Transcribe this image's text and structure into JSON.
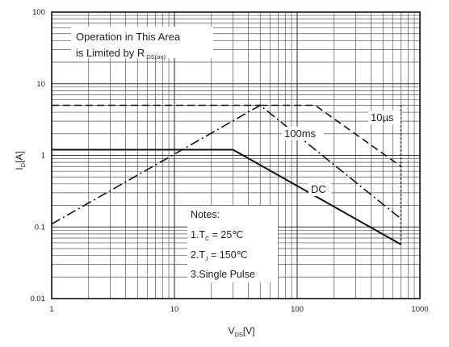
{
  "chart_data": {
    "type": "line",
    "title": "",
    "xlabel": "V",
    "xlabel_sub": "DS",
    "xlabel_unit": "[V]",
    "ylabel": "I",
    "ylabel_sub": "D",
    "ylabel_unit": "[A]",
    "x_scale": "log",
    "y_scale": "log",
    "xlim": [
      1,
      1000
    ],
    "ylim": [
      0.01,
      100
    ],
    "x_ticks": [
      "1",
      "10",
      "100",
      "1000"
    ],
    "y_ticks": [
      "100",
      "10",
      "1",
      "0.1",
      "0.01"
    ],
    "grid": true,
    "series": [
      {
        "name": "10µs",
        "style": "dash",
        "points": [
          [
            50,
            5
          ],
          [
            140,
            5
          ],
          [
            700,
            0.7
          ]
        ]
      },
      {
        "name": "100ms",
        "style": "dashdot",
        "points": [
          [
            1,
            0.11
          ],
          [
            50,
            5
          ],
          [
            700,
            0.13
          ]
        ]
      },
      {
        "name": "DC",
        "style": "solid",
        "points": [
          [
            1,
            1.2
          ],
          [
            30,
            1.2
          ],
          [
            700,
            0.057
          ]
        ]
      },
      {
        "name": "",
        "style": "dash",
        "points": [
          [
            1,
            5
          ],
          [
            50,
            5
          ]
        ]
      },
      {
        "name": "",
        "style": "dot",
        "points": [
          [
            700,
            5
          ],
          [
            700,
            0.057
          ]
        ]
      }
    ],
    "annotations": {
      "rds_line1": "Operation in This Area",
      "rds_line2": "is Limited by R",
      "rds_sub": "DS(on)",
      "label_10us": "10µs",
      "label_100ms": "100ms",
      "label_dc": "DC"
    },
    "notes": {
      "title": "Notes:",
      "n1_prefix": "1.T",
      "n1_sub": "C",
      "n1_suffix": " = 25℃",
      "n2_prefix": "2.T",
      "n2_sub": "J",
      "n2_suffix": " = 150℃",
      "n3": "3.Single Pulse"
    }
  }
}
